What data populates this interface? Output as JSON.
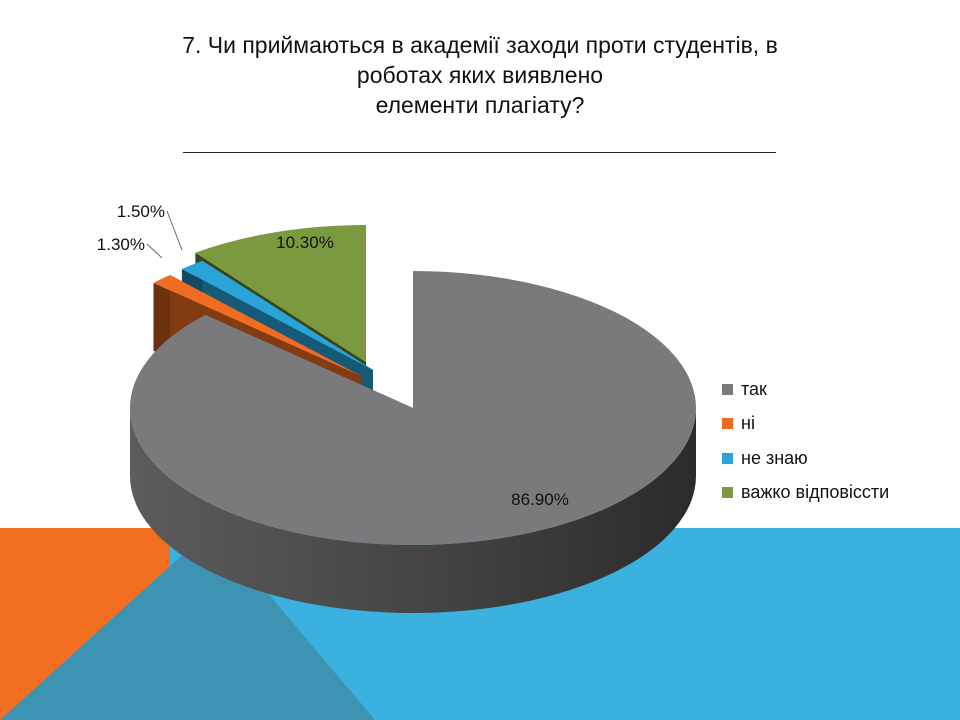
{
  "title_lines": [
    "7. Чи приймаються в академії заходи проти студентів, в",
    "роботах яких виявлено",
    "елементи плагіату?"
  ],
  "theme_colors": {
    "orange": "#f26f22",
    "blue": "#3ab1df",
    "steel": "#3c94b2"
  },
  "chart_data": {
    "type": "pie",
    "style": "3d-exploded",
    "categories": [
      "так",
      "ні",
      "не знаю",
      "важко відповісcти"
    ],
    "values": [
      86.9,
      1.3,
      1.5,
      10.3
    ],
    "labels": [
      "86.90%",
      "1.30%",
      "1.50%",
      "10.30%"
    ],
    "colors": [
      "#7a7a7c",
      "#ef6c22",
      "#2aa4d8",
      "#7b9a3f"
    ],
    "legend": "right"
  }
}
